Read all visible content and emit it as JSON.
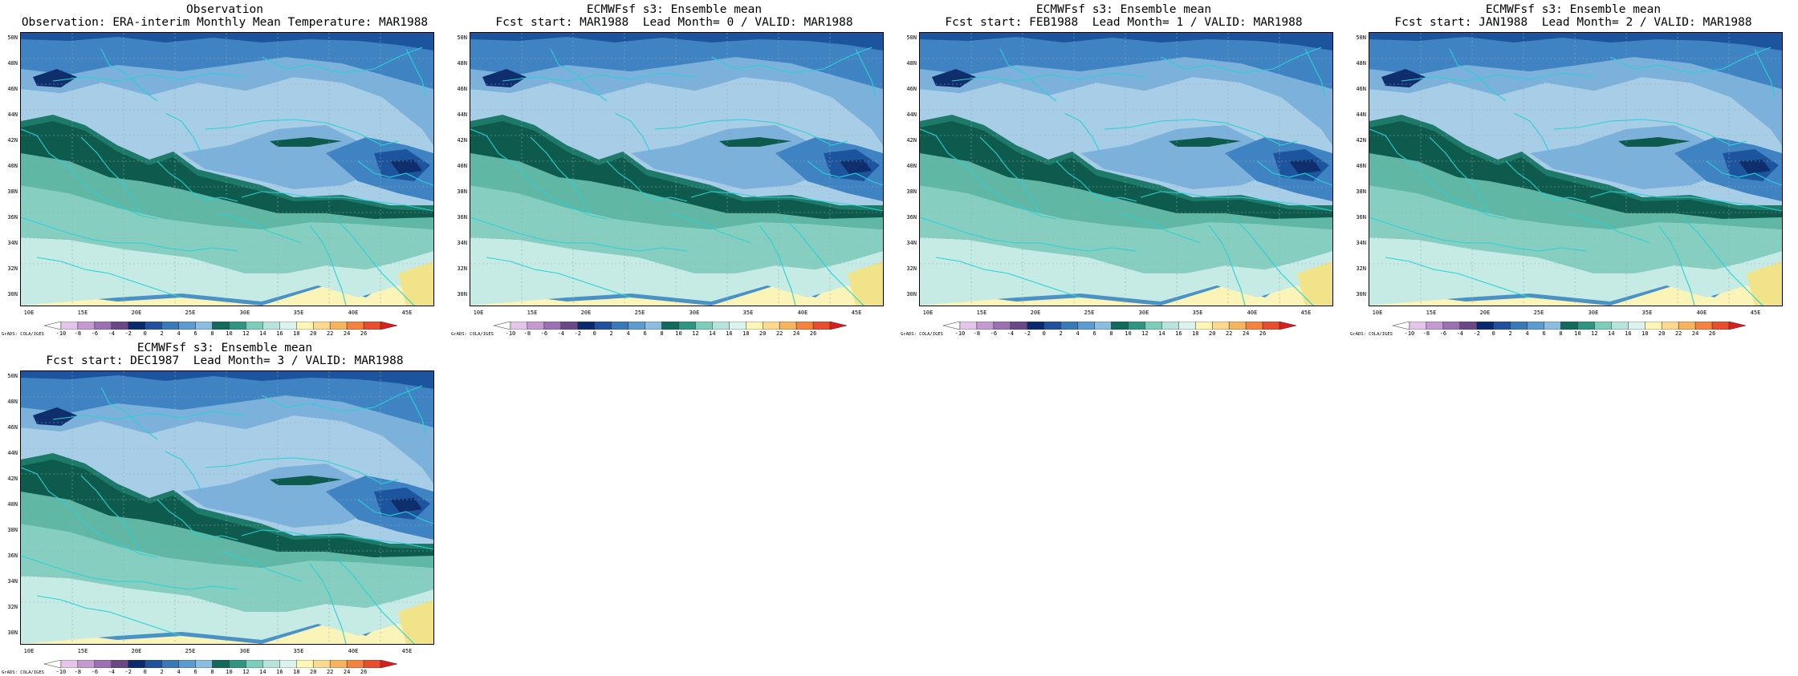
{
  "panels": [
    {
      "line1": "Observation",
      "line2": "Observation: ERA-interim Monthly Mean Temperature: MAR1988",
      "credit": "GrADS: COLA/IGES"
    },
    {
      "line1": "ECMWFsf s3: Ensemble mean",
      "line2": "Fcst start: MAR1988  Lead Month= 0 / VALID: MAR1988",
      "credit": "GrADS: COLA/IGES"
    },
    {
      "line1": "ECMWFsf s3: Ensemble mean",
      "line2": "Fcst start: FEB1988  Lead Month= 1 / VALID: MAR1988",
      "credit": "GrADS: COLA/IGES"
    },
    {
      "line1": "ECMWFsf s3: Ensemble mean",
      "line2": "Fcst start: JAN1988  Lead Month= 2 / VALID: MAR1988",
      "credit": "GrADS: COLA/IGES"
    },
    {
      "line1": "ECMWFsf s3: Ensemble mean",
      "line2": "Fcst start: DEC1987  Lead Month= 3 / VALID: MAR1988",
      "credit": "GrADS: COLA/IGES"
    }
  ],
  "lat_labels": [
    "50N",
    "48N",
    "46N",
    "44N",
    "42N",
    "40N",
    "38N",
    "36N",
    "34N",
    "32N",
    "30N"
  ],
  "lon_labels": [
    "10E",
    "15E",
    "20E",
    "25E",
    "30E",
    "35E",
    "40E",
    "45E"
  ],
  "colorbar_labels": [
    "-10",
    "-8",
    "-6",
    "-4",
    "-2",
    "0",
    "2",
    "4",
    "6",
    "8",
    "10",
    "12",
    "14",
    "16",
    "18",
    "20",
    "22",
    "24",
    "26"
  ],
  "colorbar_colors": [
    "#ffffff",
    "#e6c5ec",
    "#c59ad0",
    "#9d6fb3",
    "#6b4785",
    "#0b2a6e",
    "#1f519c",
    "#3a79b8",
    "#5a9bd0",
    "#8bbde0",
    "#116b5d",
    "#2f9582",
    "#7bcdbc",
    "#b6e3dc",
    "#dcf2ee",
    "#fdf6b6",
    "#fbd98e",
    "#f7b35e",
    "#f58340",
    "#e84e2b",
    "#d81e1e"
  ],
  "map_colors": {
    "c6": "#a8cde6",
    "c4": "#7bb1db",
    "c2": "#3f83c2",
    "c0": "#1c559d",
    "cm2": "#0f2f6c",
    "c8": "#1d7a68",
    "c10": "#0e5a4c",
    "c12": "#5fb7a4",
    "c14": "#86cfc0",
    "c16": "#c6ebe5",
    "c18": "#fbf4b8",
    "c20": "#f1e38a",
    "coast": "#2ad0d8"
  }
}
